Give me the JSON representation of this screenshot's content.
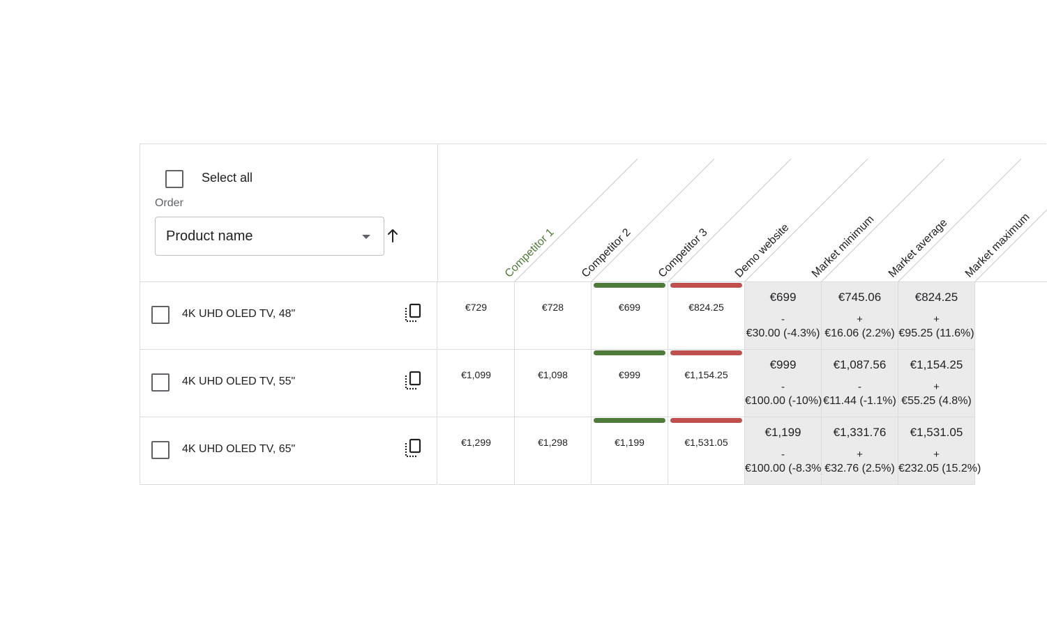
{
  "controls": {
    "select_all_label": "Select all",
    "order_label": "Order",
    "order_value": "Product name"
  },
  "columns": [
    {
      "label": "Competitor 1",
      "color": "#4e7a3a"
    },
    {
      "label": "Competitor 2",
      "color": "#202124"
    },
    {
      "label": "Competitor 3",
      "color": "#202124"
    },
    {
      "label": "Demo website",
      "color": "#202124"
    },
    {
      "label": "Market minimum",
      "color": "#202124"
    },
    {
      "label": "Market average",
      "color": "#202124"
    },
    {
      "label": "Market maximum",
      "color": "#202124"
    }
  ],
  "colors": {
    "min_bar": "#4e7a3a",
    "max_bar": "#c0504d",
    "summary_bg": "#ebebeb",
    "border": "#dadce0"
  },
  "rows": [
    {
      "name": "4K UHD OLED TV, 48\"",
      "prices": [
        "€729",
        "€728",
        "€699",
        "€824.25"
      ],
      "summary": [
        {
          "value": "€699",
          "sign": "-",
          "diff": "€30.00 (-4.3%)"
        },
        {
          "value": "€745.06",
          "sign": "+",
          "diff": "€16.06 (2.2%)"
        },
        {
          "value": "€824.25",
          "sign": "+",
          "diff": "€95.25 (11.6%)"
        }
      ]
    },
    {
      "name": "4K UHD OLED TV, 55\"",
      "prices": [
        "€1,099",
        "€1,098",
        "€999",
        "€1,154.25"
      ],
      "summary": [
        {
          "value": "€999",
          "sign": "-",
          "diff": "€100.00 (-10%)"
        },
        {
          "value": "€1,087.56",
          "sign": "-",
          "diff": "€11.44 (-1.1%)"
        },
        {
          "value": "€1,154.25",
          "sign": "+",
          "diff": "€55.25 (4.8%)"
        }
      ]
    },
    {
      "name": "4K UHD OLED TV, 65\"",
      "prices": [
        "€1,299",
        "€1,298",
        "€1,199",
        "€1,531.05"
      ],
      "summary": [
        {
          "value": "€1,199",
          "sign": "-",
          "diff": "€100.00 (-8.3%)"
        },
        {
          "value": "€1,331.76",
          "sign": "+",
          "diff": "€32.76 (2.5%)"
        },
        {
          "value": "€1,531.05",
          "sign": "+",
          "diff": "€232.05 (15.2%)"
        }
      ]
    }
  ]
}
